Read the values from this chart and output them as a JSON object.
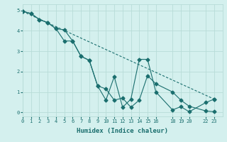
{
  "xlabel": "Humidex (Indice chaleur)",
  "bg_color": "#d4f0ee",
  "grid_color": "#b8dcd8",
  "line_color": "#1a6e6e",
  "line1_x": [
    0,
    1,
    2,
    3,
    4,
    5,
    6,
    7,
    8,
    9,
    10,
    11,
    12,
    13,
    14,
    15,
    16,
    18,
    19,
    20,
    22,
    23
  ],
  "line1_y": [
    4.95,
    4.85,
    4.55,
    4.4,
    4.1,
    4.05,
    3.5,
    2.75,
    2.55,
    1.3,
    1.15,
    0.6,
    0.7,
    0.25,
    0.6,
    1.8,
    1.4,
    1.0,
    0.6,
    0.3,
    0.07,
    0.03
  ],
  "line2_x": [
    0,
    1,
    2,
    3,
    4,
    5,
    6,
    7,
    8,
    9,
    10,
    11,
    12,
    13,
    14,
    15,
    16,
    18,
    19,
    20,
    22,
    23
  ],
  "line2_y": [
    4.95,
    4.85,
    4.55,
    4.4,
    4.1,
    3.5,
    3.5,
    2.75,
    2.55,
    1.3,
    0.6,
    1.75,
    0.25,
    0.65,
    2.6,
    2.6,
    1.0,
    0.12,
    0.28,
    0.03,
    0.48,
    0.65
  ],
  "line3_x": [
    0,
    23
  ],
  "line3_y": [
    4.95,
    0.65
  ],
  "xlim": [
    0,
    24
  ],
  "ylim": [
    -0.2,
    5.3
  ],
  "xticks": [
    0,
    1,
    2,
    3,
    4,
    5,
    6,
    7,
    8,
    9,
    10,
    11,
    12,
    13,
    14,
    15,
    16,
    18,
    19,
    20,
    22,
    23
  ],
  "yticks": [
    0,
    1,
    2,
    3,
    4,
    5
  ],
  "markersize": 2.5
}
